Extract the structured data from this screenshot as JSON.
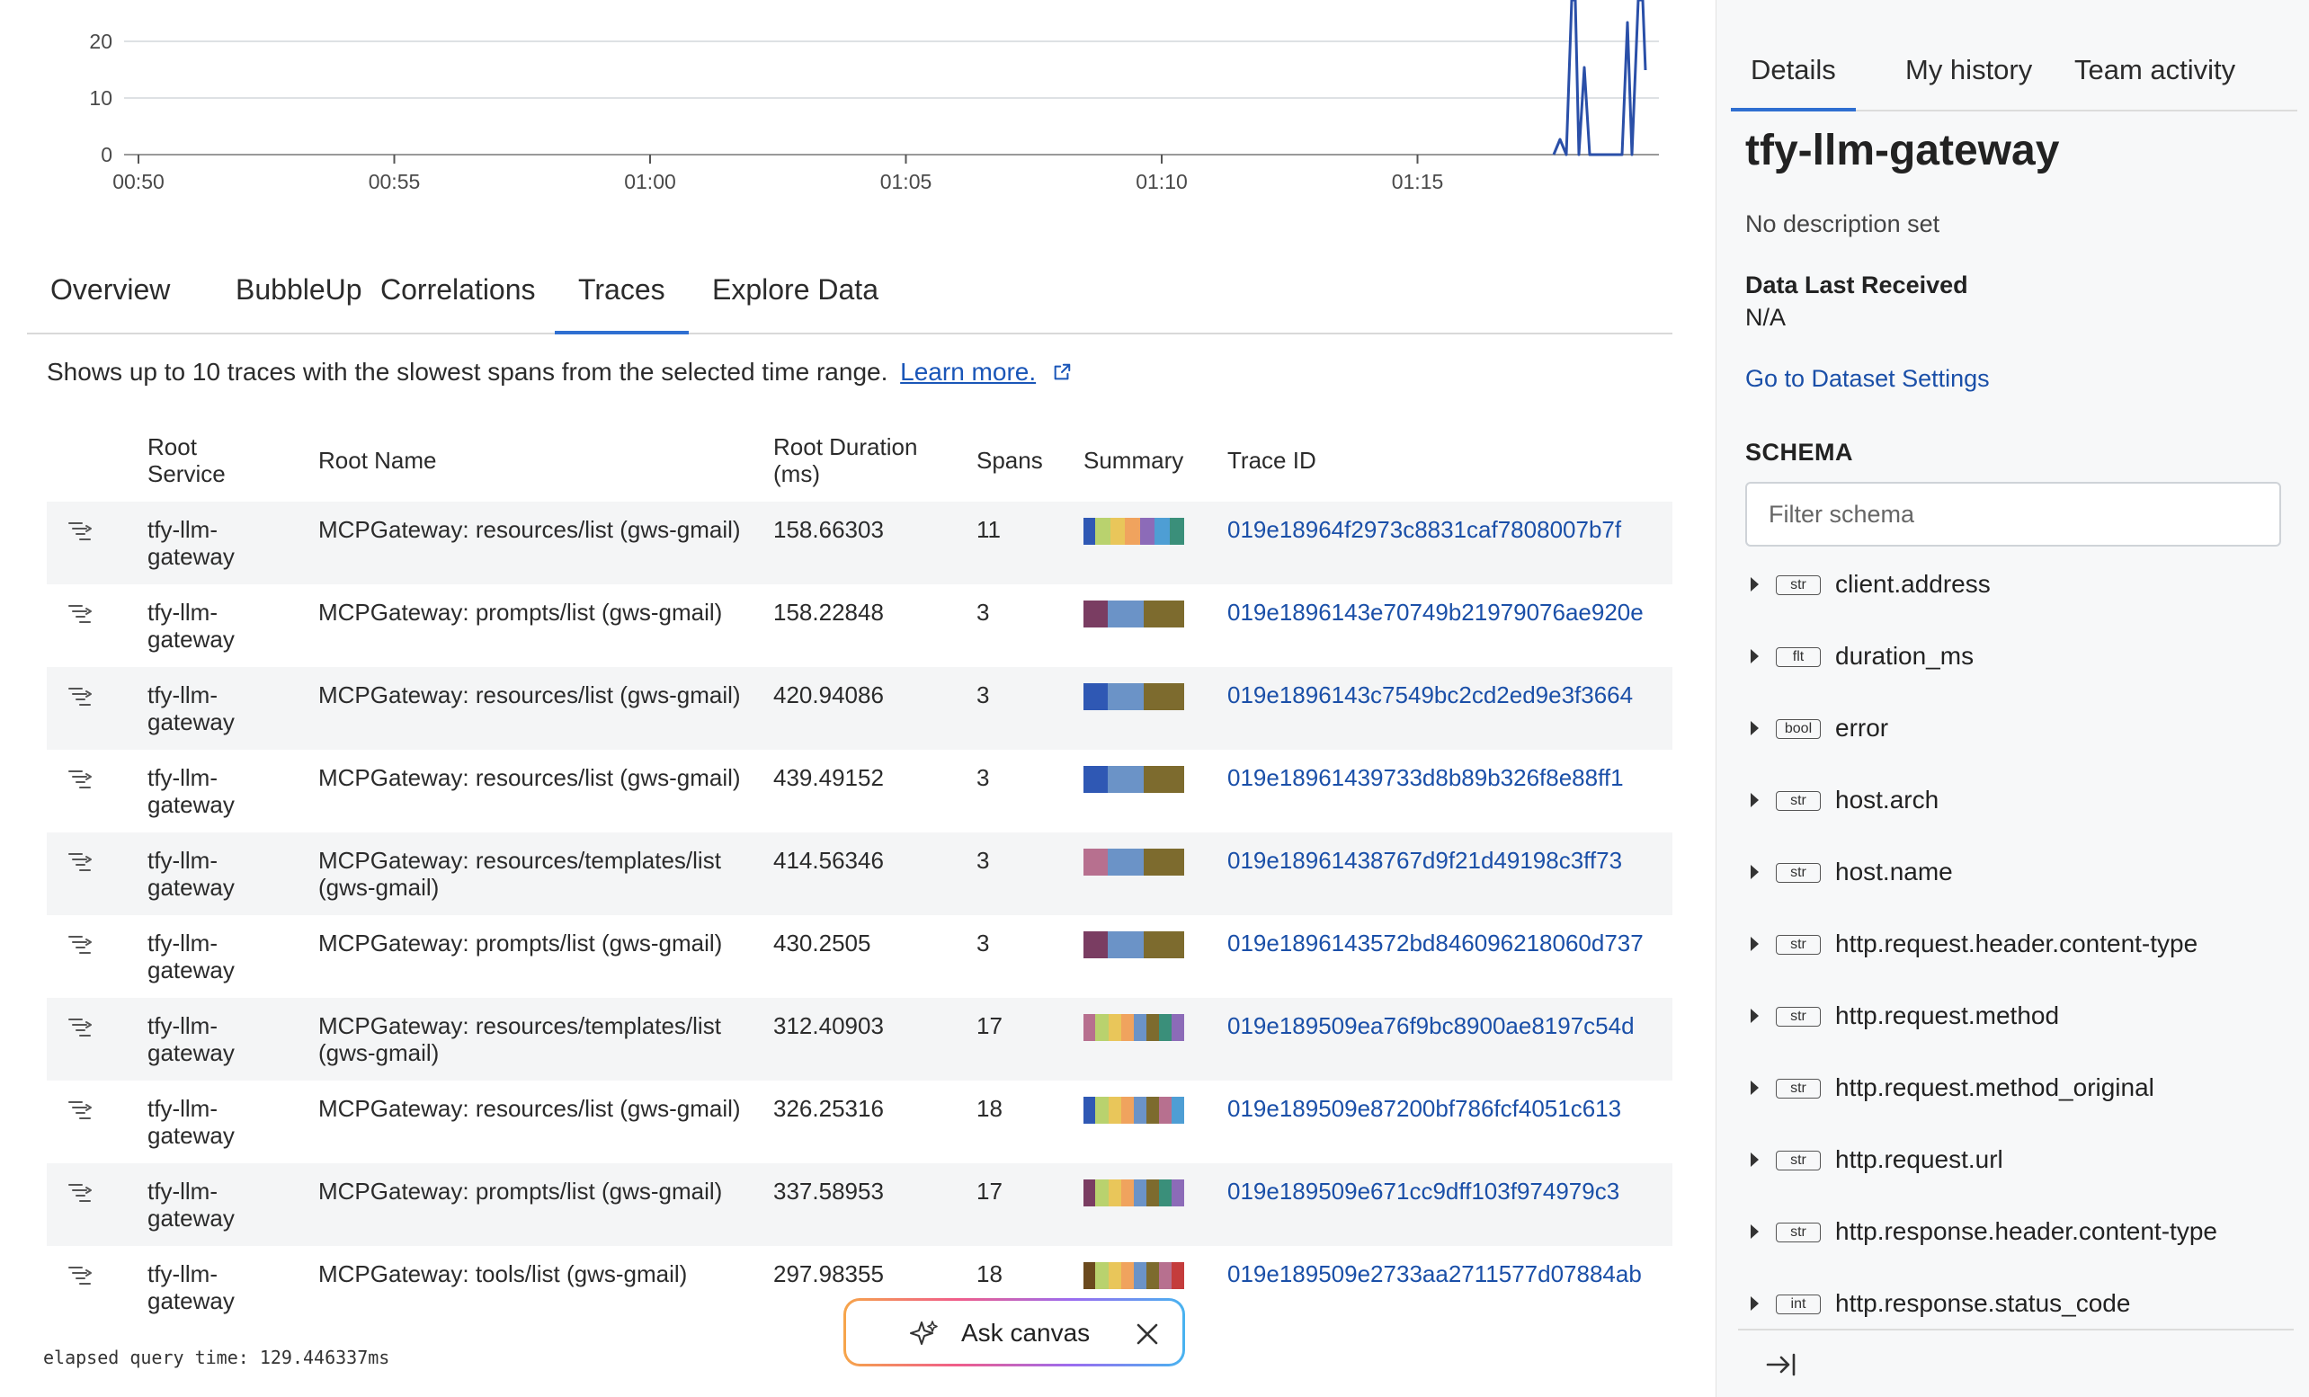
{
  "chart": {
    "y_ticks": [
      "20",
      "10",
      "0"
    ],
    "x_ticks": [
      "00:50",
      "00:55",
      "01:00",
      "01:05",
      "01:10",
      "01:15"
    ],
    "line_color": "#2a4fa8"
  },
  "tabs": [
    {
      "label": "Overview"
    },
    {
      "label": "BubbleUp"
    },
    {
      "label": "Correlations"
    },
    {
      "label": "Traces",
      "active": true
    },
    {
      "label": "Explore Data"
    }
  ],
  "description": {
    "text": "Shows up to 10 traces with the slowest spans from the selected time range.",
    "link": "Learn more."
  },
  "table": {
    "headers": {
      "root_service": "Root Service",
      "root_name": "Root Name",
      "root_duration": "Root Duration (ms)",
      "spans": "Spans",
      "summary": "Summary",
      "trace_id": "Trace ID"
    },
    "rows": [
      {
        "service": "tfy-llm-gateway",
        "name": "MCPGateway: resources/list (gws-gmail)",
        "duration": "158.66303",
        "spans": "11",
        "trace_id": "019e18964f2973c8831caf7808007b7f",
        "summary": [
          "#2f58b4",
          "#b9d26e",
          "#e9c65a",
          "#f0a35e",
          "#8c6bb8",
          "#4e9ed4",
          "#3a8f7a"
        ]
      },
      {
        "service": "tfy-llm-gateway",
        "name": "MCPGateway: prompts/list (gws-gmail)",
        "duration": "158.22848",
        "spans": "3",
        "trace_id": "019e1896143e70749b21979076ae920e",
        "summary": [
          "#7a3d62",
          "#6b93c7",
          "#7d6b2e"
        ]
      },
      {
        "service": "tfy-llm-gateway",
        "name": "MCPGateway: resources/list (gws-gmail)",
        "duration": "420.94086",
        "spans": "3",
        "trace_id": "019e1896143c7549bc2cd2ed9e3f3664",
        "summary": [
          "#2f58b4",
          "#6b93c7",
          "#7d6b2e"
        ]
      },
      {
        "service": "tfy-llm-gateway",
        "name": "MCPGateway: resources/list (gws-gmail)",
        "duration": "439.49152",
        "spans": "3",
        "trace_id": "019e18961439733d8b89b326f8e88ff1",
        "summary": [
          "#2f58b4",
          "#6b93c7",
          "#7d6b2e"
        ]
      },
      {
        "service": "tfy-llm-gateway",
        "name": "MCPGateway: resources/templates/list (gws-gmail)",
        "duration": "414.56346",
        "spans": "3",
        "trace_id": "019e18961438767d9f21d49198c3ff73",
        "summary": [
          "#b7708f",
          "#6b93c7",
          "#7d6b2e"
        ]
      },
      {
        "service": "tfy-llm-gateway",
        "name": "MCPGateway: prompts/list (gws-gmail)",
        "duration": "430.2505",
        "spans": "3",
        "trace_id": "019e1896143572bd846096218060d737",
        "summary": [
          "#7a3d62",
          "#6b93c7",
          "#7d6b2e"
        ]
      },
      {
        "service": "tfy-llm-gateway",
        "name": "MCPGateway: resources/templates/list (gws-gmail)",
        "duration": "312.40903",
        "spans": "17",
        "trace_id": "019e189509ea76f9bc8900ae8197c54d",
        "summary": [
          "#b7708f",
          "#b9d26e",
          "#e9c65a",
          "#f0a35e",
          "#6b93c7",
          "#7d6b2e",
          "#3a8f7a",
          "#8c6bb8"
        ]
      },
      {
        "service": "tfy-llm-gateway",
        "name": "MCPGateway: resources/list (gws-gmail)",
        "duration": "326.25316",
        "spans": "18",
        "trace_id": "019e189509e87200bf786fcf4051c613",
        "summary": [
          "#2f58b4",
          "#b9d26e",
          "#e9c65a",
          "#f0a35e",
          "#6b93c7",
          "#7d6b2e",
          "#b7708f",
          "#4e9ed4"
        ]
      },
      {
        "service": "tfy-llm-gateway",
        "name": "MCPGateway: prompts/list (gws-gmail)",
        "duration": "337.58953",
        "spans": "17",
        "trace_id": "019e189509e671cc9dff103f974979c3",
        "summary": [
          "#7a3d62",
          "#b9d26e",
          "#e9c65a",
          "#f0a35e",
          "#6b93c7",
          "#7d6b2e",
          "#3a8f7a",
          "#8c6bb8"
        ]
      },
      {
        "service": "tfy-llm-gateway",
        "name": "MCPGateway: tools/list (gws-gmail)",
        "duration": "297.98355",
        "spans": "18",
        "trace_id": "019e189509e2733aa2711577d07884ab",
        "summary": [
          "#6b4a1e",
          "#b9d26e",
          "#e9c65a",
          "#f0a35e",
          "#6b93c7",
          "#7d6b2e",
          "#b7708f",
          "#c43c3c"
        ]
      }
    ]
  },
  "elapsed": "elapsed query time: 129.446337ms",
  "ask_canvas": {
    "label": "Ask canvas"
  },
  "panel": {
    "tabs": [
      {
        "label": "Details",
        "active": true
      },
      {
        "label": "My history"
      },
      {
        "label": "Team activity"
      }
    ],
    "dataset_title": "tfy-llm-gateway",
    "dataset_description": "No description set",
    "data_last_received_label": "Data Last Received",
    "data_last_received_value": "N/A",
    "settings_link": "Go to Dataset Settings",
    "schema_heading": "SCHEMA",
    "filter_placeholder": "Filter schema",
    "schema": [
      {
        "type": "str",
        "name": "client.address"
      },
      {
        "type": "flt",
        "name": "duration_ms"
      },
      {
        "type": "bool",
        "name": "error"
      },
      {
        "type": "str",
        "name": "host.arch"
      },
      {
        "type": "str",
        "name": "host.name"
      },
      {
        "type": "str",
        "name": "http.request.header.content-type"
      },
      {
        "type": "str",
        "name": "http.request.method"
      },
      {
        "type": "str",
        "name": "http.request.method_original"
      },
      {
        "type": "str",
        "name": "http.request.url"
      },
      {
        "type": "str",
        "name": "http.response.header.content-type"
      },
      {
        "type": "int",
        "name": "http.response.status_code"
      }
    ]
  }
}
